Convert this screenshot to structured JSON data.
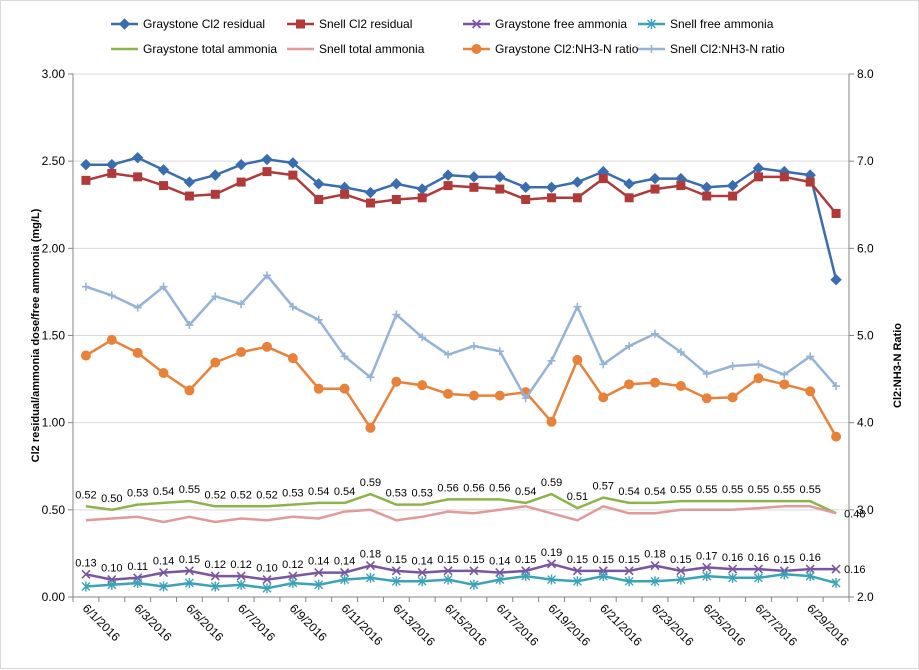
{
  "chart_data": {
    "type": "line",
    "title": "",
    "ylabel": "Cl2 residual/ammonia dose/free ammonia (mg/L)",
    "y2label": "Cl2:NH3-N Ratio",
    "ylim": [
      0,
      3
    ],
    "y2lim": [
      2,
      8
    ],
    "yticks": [
      "0.00",
      "0.50",
      "1.00",
      "1.50",
      "2.00",
      "2.50",
      "3.00"
    ],
    "y2ticks": [
      "2.0",
      "3.0",
      "4.0",
      "5.0",
      "6.0",
      "7.0",
      "8.0"
    ],
    "grid": true,
    "legend_position": "top",
    "x": [
      "6/1/2016",
      "6/2/2016",
      "6/3/2016",
      "6/4/2016",
      "6/5/2016",
      "6/6/2016",
      "6/7/2016",
      "6/8/2016",
      "6/9/2016",
      "6/10/2016",
      "6/11/2016",
      "6/12/2016",
      "6/13/2016",
      "6/14/2016",
      "6/15/2016",
      "6/16/2016",
      "6/17/2016",
      "6/18/2016",
      "6/19/2016",
      "6/20/2016",
      "6/21/2016",
      "6/22/2016",
      "6/23/2016",
      "6/24/2016",
      "6/25/2016",
      "6/26/2016",
      "6/27/2016",
      "6/28/2016",
      "6/29/2016",
      "6/30/2016"
    ],
    "xticks": [
      "6/1/2016",
      "6/3/2016",
      "6/5/2016",
      "6/7/2016",
      "6/9/2016",
      "6/11/2016",
      "6/13/2016",
      "6/15/2016",
      "6/17/2016",
      "6/19/2016",
      "6/21/2016",
      "6/23/2016",
      "6/25/2016",
      "6/27/2016",
      "6/29/2016"
    ],
    "series": [
      {
        "name": "Graystone Cl2 residual",
        "axis": "left",
        "color": "#3a6db0",
        "marker": "diamond",
        "values": [
          2.48,
          2.48,
          2.52,
          2.45,
          2.38,
          2.42,
          2.48,
          2.51,
          2.49,
          2.37,
          2.35,
          2.32,
          2.37,
          2.34,
          2.42,
          2.41,
          2.41,
          2.35,
          2.35,
          2.38,
          2.44,
          2.37,
          2.4,
          2.4,
          2.35,
          2.36,
          2.46,
          2.44,
          2.42,
          1.82
        ]
      },
      {
        "name": "Snell Cl2 residual",
        "axis": "left",
        "color": "#b03a3a",
        "marker": "square",
        "values": [
          2.39,
          2.43,
          2.41,
          2.36,
          2.3,
          2.31,
          2.38,
          2.44,
          2.42,
          2.28,
          2.31,
          2.26,
          2.28,
          2.29,
          2.36,
          2.35,
          2.34,
          2.28,
          2.29,
          2.29,
          2.4,
          2.29,
          2.34,
          2.36,
          2.3,
          2.3,
          2.41,
          2.41,
          2.38,
          2.2
        ]
      },
      {
        "name": "Graystone free ammonia",
        "axis": "left",
        "color": "#7a55a0",
        "marker": "x",
        "values": [
          0.13,
          0.1,
          0.11,
          0.14,
          0.15,
          0.12,
          0.12,
          0.1,
          0.12,
          0.14,
          0.14,
          0.18,
          0.15,
          0.14,
          0.15,
          0.15,
          0.14,
          0.15,
          0.19,
          0.15,
          0.15,
          0.15,
          0.18,
          0.15,
          0.17,
          0.16,
          0.16,
          0.15,
          0.16,
          0.16
        ]
      },
      {
        "name": "Snell free ammonia",
        "axis": "left",
        "color": "#3aa3b8",
        "marker": "star",
        "values": [
          0.06,
          0.07,
          0.08,
          0.06,
          0.08,
          0.06,
          0.07,
          0.05,
          0.08,
          0.07,
          0.1,
          0.11,
          0.09,
          0.09,
          0.1,
          0.07,
          0.1,
          0.12,
          0.1,
          0.09,
          0.12,
          0.09,
          0.09,
          0.1,
          0.12,
          0.11,
          0.11,
          0.13,
          0.12,
          0.08
        ]
      },
      {
        "name": "Graystone total ammonia",
        "axis": "left",
        "color": "#8db44a",
        "marker": "none",
        "values": [
          0.52,
          0.5,
          0.53,
          0.54,
          0.55,
          0.52,
          0.52,
          0.52,
          0.53,
          0.54,
          0.54,
          0.59,
          0.53,
          0.53,
          0.56,
          0.56,
          0.56,
          0.54,
          0.59,
          0.51,
          0.57,
          0.54,
          0.54,
          0.55,
          0.55,
          0.55,
          0.55,
          0.55,
          0.55,
          0.48
        ]
      },
      {
        "name": "Snell total ammonia",
        "axis": "left",
        "color": "#e09a9a",
        "marker": "none",
        "values": [
          0.44,
          0.45,
          0.46,
          0.43,
          0.46,
          0.43,
          0.45,
          0.44,
          0.46,
          0.45,
          0.49,
          0.5,
          0.44,
          0.46,
          0.49,
          0.48,
          0.5,
          0.52,
          0.48,
          0.44,
          0.52,
          0.48,
          0.48,
          0.5,
          0.5,
          0.5,
          0.51,
          0.52,
          0.52,
          0.48
        ]
      },
      {
        "name": "Graystone Cl2:NH3-N ratio",
        "axis": "right",
        "color": "#e8823a",
        "marker": "circle",
        "values": [
          4.77,
          4.95,
          4.8,
          4.57,
          4.37,
          4.69,
          4.81,
          4.87,
          4.74,
          4.39,
          4.39,
          3.94,
          4.47,
          4.43,
          4.33,
          4.31,
          4.31,
          4.35,
          4.01,
          4.72,
          4.29,
          4.44,
          4.46,
          4.42,
          4.28,
          4.29,
          4.51,
          4.44,
          4.36,
          3.84
        ]
      },
      {
        "name": "Snell Cl2:NH3-N ratio",
        "axis": "right",
        "color": "#95b3d7",
        "marker": "plus",
        "values": [
          5.56,
          5.46,
          5.32,
          5.56,
          5.12,
          5.45,
          5.36,
          5.69,
          5.33,
          5.18,
          4.76,
          4.52,
          5.24,
          4.98,
          4.78,
          4.88,
          4.82,
          4.28,
          4.71,
          5.33,
          4.67,
          4.88,
          5.02,
          4.81,
          4.56,
          4.65,
          4.67,
          4.55,
          4.76,
          4.42
        ]
      }
    ],
    "data_labels": [
      {
        "series": "Graystone total ammonia",
        "labels": [
          "0.52",
          "0.50",
          "0.53",
          "0.54",
          "0.55",
          "0.52",
          "0.52",
          "0.52",
          "0.53",
          "0.54",
          "0.54",
          "0.59",
          "0.53",
          "0.53",
          "0.56",
          "0.56",
          "0.56",
          "0.54",
          "0.59",
          "0.51",
          "0.57",
          "0.54",
          "0.54",
          "0.55",
          "0.55",
          "0.55",
          "0.55",
          "0.55",
          "0.55",
          "0.48"
        ]
      },
      {
        "series": "Graystone free ammonia",
        "labels": [
          "0.13",
          "0.10",
          "0.11",
          "0.14",
          "0.15",
          "0.12",
          "0.12",
          "0.10",
          "0.12",
          "0.14",
          "0.14",
          "0.18",
          "0.15",
          "0.14",
          "0.15",
          "0.15",
          "0.14",
          "0.15",
          "0.19",
          "0.15",
          "0.15",
          "0.15",
          "0.18",
          "0.15",
          "0.17",
          "0.16",
          "0.16",
          "0.15",
          "0.16",
          "0.16"
        ]
      }
    ]
  }
}
